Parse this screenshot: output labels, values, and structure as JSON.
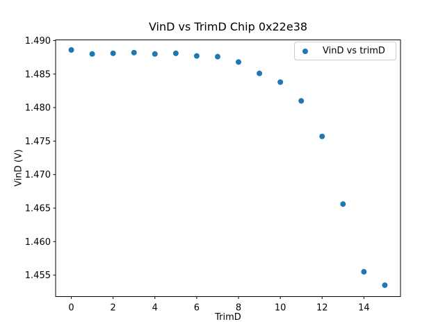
{
  "figure": {
    "background": "#ffffff"
  },
  "chart_data": {
    "type": "scatter",
    "title": "VinD vs TrimD Chip 0x22e38",
    "xlabel": "TrimD",
    "ylabel": "VinD (V)",
    "legend": {
      "label": "VinD vs trimD",
      "position": "upper right"
    },
    "marker_color": "#1f77b4",
    "grid": false,
    "x": [
      0,
      1,
      2,
      3,
      4,
      5,
      6,
      7,
      8,
      9,
      10,
      11,
      12,
      13,
      14,
      15
    ],
    "y": [
      1.4886,
      1.488,
      1.4881,
      1.4882,
      1.488,
      1.4881,
      1.4877,
      1.4876,
      1.4868,
      1.4851,
      1.4838,
      1.481,
      1.4757,
      1.4656,
      1.4555,
      1.4535
    ],
    "xlim": [
      -0.75,
      15.75
    ],
    "ylim": [
      1.4518,
      1.4901
    ],
    "xticks": [
      0,
      2,
      4,
      6,
      8,
      10,
      12,
      14
    ],
    "xtick_labels": [
      "0",
      "2",
      "4",
      "6",
      "8",
      "10",
      "12",
      "14"
    ],
    "yticks": [
      1.455,
      1.46,
      1.465,
      1.47,
      1.475,
      1.48,
      1.485,
      1.49
    ],
    "ytick_labels": [
      "1.455",
      "1.460",
      "1.465",
      "1.470",
      "1.475",
      "1.480",
      "1.485",
      "1.490"
    ]
  }
}
